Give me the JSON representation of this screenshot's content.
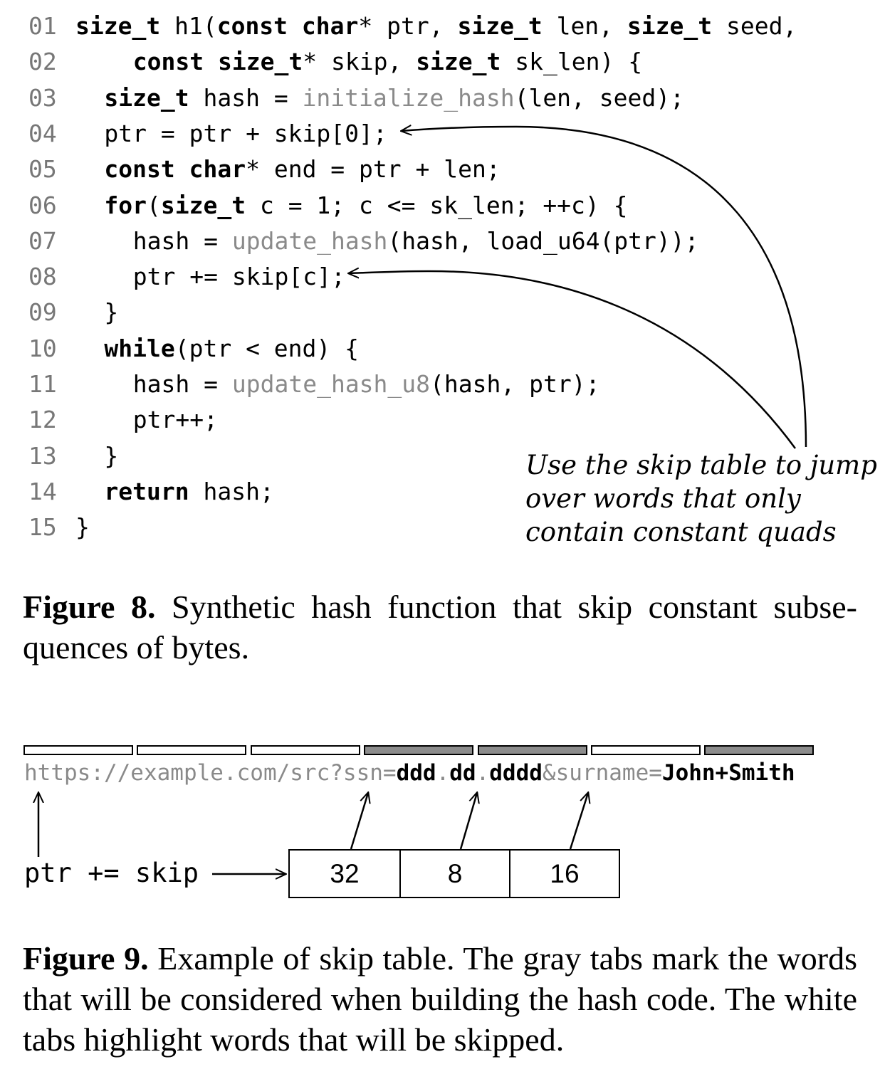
{
  "figure8": {
    "code_lines": [
      {
        "num": "01",
        "indent": 0,
        "tokens": [
          {
            "t": "size_t",
            "c": "kw"
          },
          {
            "t": " h1(",
            "c": "pl"
          },
          {
            "t": "const",
            "c": "kw"
          },
          {
            "t": " ",
            "c": "pl"
          },
          {
            "t": "char",
            "c": "kw"
          },
          {
            "t": "* ptr, ",
            "c": "pl"
          },
          {
            "t": "size_t",
            "c": "kw"
          },
          {
            "t": " len, ",
            "c": "pl"
          },
          {
            "t": "size_t",
            "c": "kw"
          },
          {
            "t": " seed,",
            "c": "pl"
          }
        ]
      },
      {
        "num": "02",
        "indent": 4,
        "tokens": [
          {
            "t": "const",
            "c": "kw"
          },
          {
            "t": " ",
            "c": "pl"
          },
          {
            "t": "size_t",
            "c": "kw"
          },
          {
            "t": "* skip, ",
            "c": "pl"
          },
          {
            "t": "size_t",
            "c": "kw"
          },
          {
            "t": " sk_len) {",
            "c": "pl"
          }
        ]
      },
      {
        "num": "03",
        "indent": 2,
        "tokens": [
          {
            "t": "size_t",
            "c": "kw"
          },
          {
            "t": " hash = ",
            "c": "pl"
          },
          {
            "t": "initialize_hash",
            "c": "fn"
          },
          {
            "t": "(len, seed);",
            "c": "pl"
          }
        ]
      },
      {
        "num": "04",
        "indent": 2,
        "tokens": [
          {
            "t": "ptr = ptr + skip[0];",
            "c": "pl"
          }
        ]
      },
      {
        "num": "05",
        "indent": 2,
        "tokens": [
          {
            "t": "const",
            "c": "kw"
          },
          {
            "t": " ",
            "c": "pl"
          },
          {
            "t": "char",
            "c": "kw"
          },
          {
            "t": "* end = ptr + len;",
            "c": "pl"
          }
        ]
      },
      {
        "num": "06",
        "indent": 2,
        "tokens": [
          {
            "t": "for",
            "c": "kw"
          },
          {
            "t": "(",
            "c": "pl"
          },
          {
            "t": "size_t",
            "c": "kw"
          },
          {
            "t": " c = 1; c <= sk_len; ++c) {",
            "c": "pl"
          }
        ]
      },
      {
        "num": "07",
        "indent": 4,
        "tokens": [
          {
            "t": "hash = ",
            "c": "pl"
          },
          {
            "t": "update_hash",
            "c": "fn"
          },
          {
            "t": "(hash, load_u64(ptr));",
            "c": "pl"
          }
        ]
      },
      {
        "num": "08",
        "indent": 4,
        "tokens": [
          {
            "t": "ptr += skip[c];",
            "c": "pl"
          }
        ]
      },
      {
        "num": "09",
        "indent": 2,
        "tokens": [
          {
            "t": "}",
            "c": "pl"
          }
        ]
      },
      {
        "num": "10",
        "indent": 2,
        "tokens": [
          {
            "t": "while",
            "c": "kw"
          },
          {
            "t": "(ptr < end) {",
            "c": "pl"
          }
        ]
      },
      {
        "num": "11",
        "indent": 4,
        "tokens": [
          {
            "t": "hash = ",
            "c": "pl"
          },
          {
            "t": "update_hash_u8",
            "c": "fn"
          },
          {
            "t": "(hash, ptr);",
            "c": "pl"
          }
        ]
      },
      {
        "num": "12",
        "indent": 4,
        "tokens": [
          {
            "t": "ptr++;",
            "c": "pl"
          }
        ]
      },
      {
        "num": "13",
        "indent": 2,
        "tokens": [
          {
            "t": "}",
            "c": "pl"
          }
        ]
      },
      {
        "num": "14",
        "indent": 2,
        "tokens": [
          {
            "t": "return",
            "c": "kw"
          },
          {
            "t": " hash;",
            "c": "pl"
          }
        ]
      },
      {
        "num": "15",
        "indent": 0,
        "tokens": [
          {
            "t": "}",
            "c": "pl"
          }
        ]
      }
    ],
    "annotation_lines": [
      "Use the skip table to jump",
      "over words that only",
      "contain constant quads"
    ],
    "caption_label": "Figure 8.",
    "caption_text": " Synthetic hash function that skip constant subse- quences of bytes."
  },
  "figure9": {
    "tabs": [
      "white",
      "white",
      "white",
      "gray",
      "gray",
      "white",
      "gray"
    ],
    "url_segments": [
      {
        "t": "https://example.com/src?ssn=",
        "c": "g"
      },
      {
        "t": "ddd",
        "c": "b"
      },
      {
        "t": ".",
        "c": "g"
      },
      {
        "t": "dd",
        "c": "b"
      },
      {
        "t": ".",
        "c": "g"
      },
      {
        "t": "dddd",
        "c": "b"
      },
      {
        "t": "&surname=",
        "c": "g"
      },
      {
        "t": "John+Smith",
        "c": "b"
      }
    ],
    "pointer_label": "ptr += skip",
    "skip_values": [
      "32",
      "8",
      "16"
    ],
    "caption_label": "Figure 9.",
    "caption_text": " Example of skip table. The gray tabs mark the words that will be considered when building the hash code. The white tabs highlight words that will be skipped."
  },
  "colors": {
    "tab_gray": "#8c8c8c",
    "muted_code": "#8a8a8a",
    "line_number": "#777777"
  }
}
